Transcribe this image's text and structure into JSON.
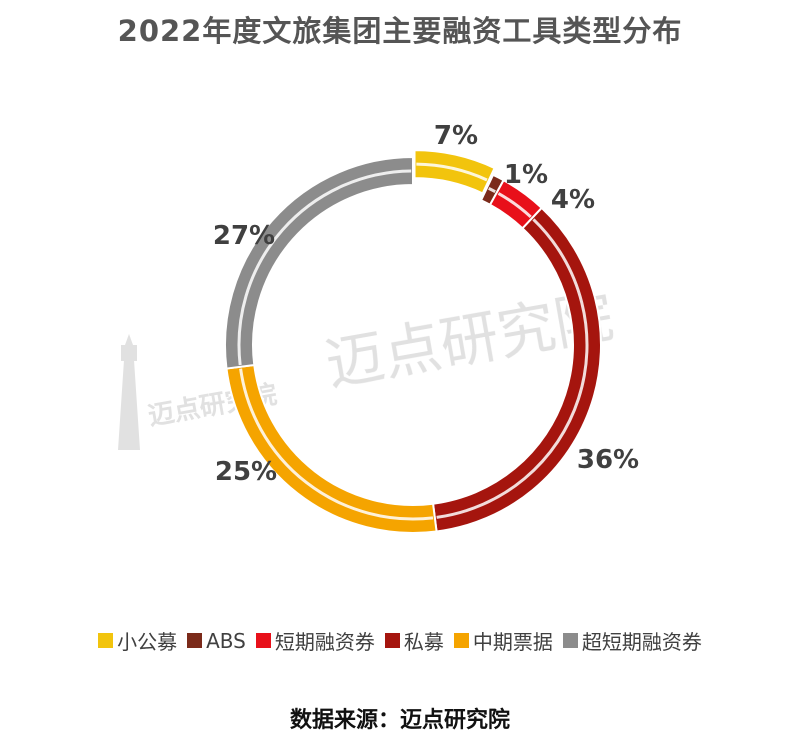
{
  "title": "2022年度文旅集团主要融资工具类型分布",
  "source": "数据来源：迈点研究院",
  "watermark": {
    "text": "迈点研究院",
    "small_text": "迈点研究院"
  },
  "chart_data": {
    "type": "pie",
    "variant": "donut",
    "title": "2022年度文旅集团主要融资工具类型分布",
    "categories": [
      "小公募",
      "ABS",
      "短期融资券",
      "私募",
      "中期票据",
      "超短期融资券"
    ],
    "values": [
      7,
      1,
      4,
      36,
      25,
      27
    ],
    "labels": [
      "7%",
      "1%",
      "4%",
      "36%",
      "25%",
      "27%"
    ],
    "colors": [
      "#F2C40D",
      "#7B2A1A",
      "#E8101A",
      "#A5150E",
      "#F5A400",
      "#8C8C8C"
    ],
    "legend_position": "bottom",
    "exploded_slice": "小公募"
  }
}
